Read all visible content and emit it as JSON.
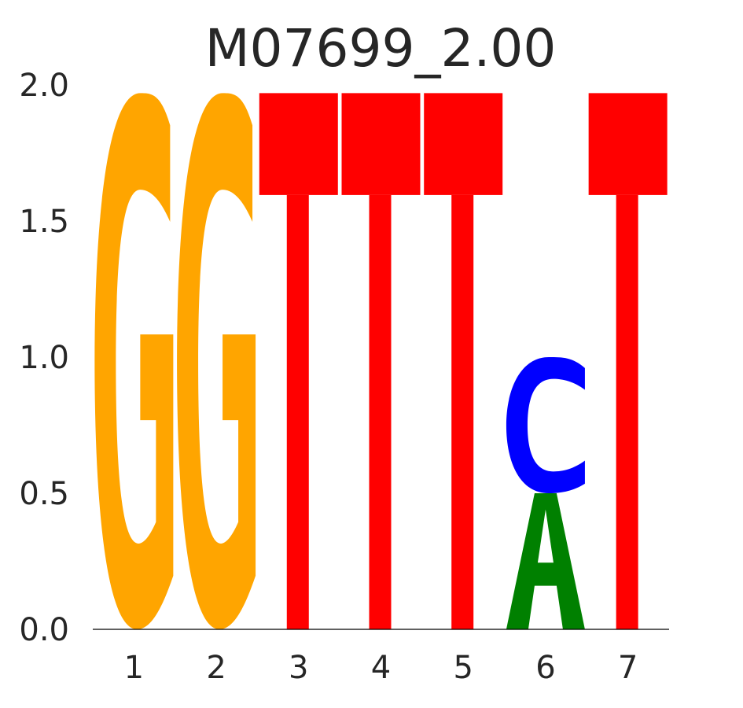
{
  "chart_data": {
    "type": "sequence-logo",
    "title": "M07699_2.00",
    "xlabel": "",
    "ylabel": "",
    "ylim": [
      0,
      2.0
    ],
    "y_ticks": [
      "0.0",
      "0.5",
      "1.0",
      "1.5",
      "2.0"
    ],
    "y_tick_values": [
      0,
      0.5,
      1.0,
      1.5,
      2.0
    ],
    "positions": [
      "1",
      "2",
      "3",
      "4",
      "5",
      "6",
      "7"
    ],
    "grid": false,
    "letter_colors": {
      "A": "#008000",
      "C": "#0000ff",
      "G": "#ffa500",
      "T": "#ff0000"
    },
    "stacks": [
      [
        {
          "letter": "G",
          "height": 1.97
        }
      ],
      [
        {
          "letter": "G",
          "height": 1.97
        }
      ],
      [
        {
          "letter": "T",
          "height": 1.97
        }
      ],
      [
        {
          "letter": "T",
          "height": 1.97
        }
      ],
      [
        {
          "letter": "T",
          "height": 1.97
        }
      ],
      [
        {
          "letter": "A",
          "height": 0.5
        },
        {
          "letter": "C",
          "height": 0.5
        }
      ],
      [
        {
          "letter": "T",
          "height": 1.97
        }
      ]
    ]
  }
}
